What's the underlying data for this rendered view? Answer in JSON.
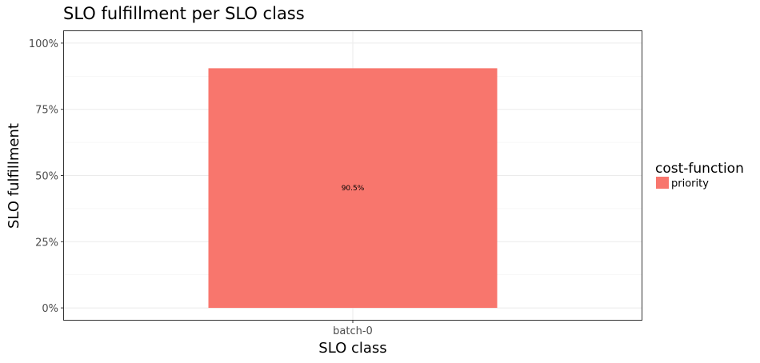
{
  "chart_data": {
    "type": "bar",
    "title": "SLO fulfillment per SLO class",
    "xlabel": "SLO class",
    "ylabel": "SLO fulfillment",
    "categories": [
      "batch-0"
    ],
    "series": [
      {
        "name": "priority",
        "values": [
          0.905
        ],
        "color": "#F8766D",
        "labels": [
          "90.5%"
        ]
      }
    ],
    "ylim": [
      -0.045,
      1.045
    ],
    "yticks": [
      0,
      0.25,
      0.5,
      0.75,
      1.0
    ],
    "ytick_labels": [
      "0%",
      "25%",
      "50%",
      "75%",
      "100%"
    ],
    "grid": true,
    "legend": {
      "title": "cost-function",
      "position": "right"
    }
  }
}
